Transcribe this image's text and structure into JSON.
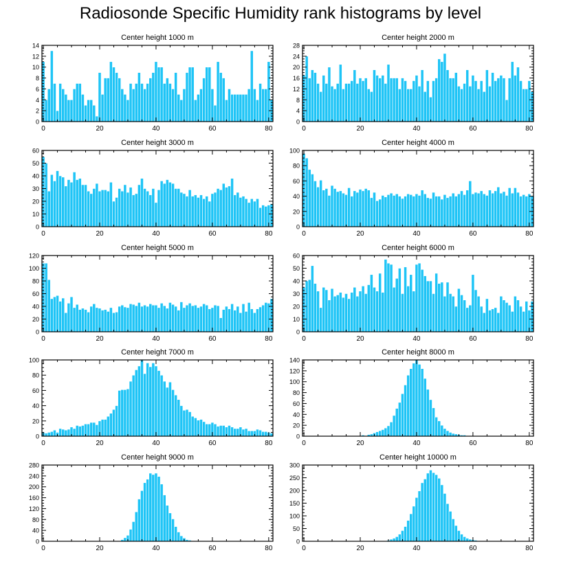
{
  "title": "Radiosonde Specific Humidity rank histograms by level",
  "colors": {
    "bar": "#1ec4f6",
    "bar_edge": "#ffffff",
    "axis": "#000000"
  },
  "chart_data": [
    {
      "type": "bar",
      "subtitle": "Center height 1000 m",
      "xlim": [
        -0.5,
        81.5
      ],
      "xticks": [
        0,
        20,
        40,
        60,
        80
      ],
      "ylim": [
        0,
        14
      ],
      "yticks": [
        0,
        2,
        4,
        6,
        8,
        10,
        12,
        14
      ],
      "values": [
        11,
        4,
        6,
        13,
        7,
        2,
        7,
        6,
        5,
        4,
        4,
        6,
        7,
        7,
        5,
        3,
        4,
        4,
        3,
        1,
        9,
        5,
        8,
        8,
        11,
        10,
        9,
        8,
        6,
        5,
        4,
        7,
        6,
        7,
        9,
        7,
        6,
        7,
        8,
        9,
        11,
        10,
        10,
        7,
        8,
        7,
        6,
        9,
        5,
        4,
        6,
        9,
        10,
        10,
        4,
        5,
        6,
        8,
        10,
        10,
        6,
        3,
        11,
        9,
        8,
        4,
        6,
        5,
        5,
        5,
        5,
        5,
        5,
        6,
        13,
        6,
        4,
        7,
        6,
        6,
        11,
        4
      ]
    },
    {
      "type": "bar",
      "subtitle": "Center height 2000 m",
      "xlim": [
        -0.5,
        81.5
      ],
      "xticks": [
        0,
        20,
        40,
        60,
        80
      ],
      "ylim": [
        0,
        28
      ],
      "yticks": [
        0,
        4,
        8,
        12,
        16,
        20,
        24,
        28
      ],
      "values": [
        17,
        24,
        16,
        19,
        18,
        14,
        11,
        17,
        14,
        20,
        13,
        12,
        14,
        21,
        12,
        14,
        14,
        15,
        19,
        14,
        16,
        15,
        16,
        12,
        11,
        19,
        17,
        16,
        17,
        14,
        21,
        16,
        16,
        16,
        12,
        16,
        15,
        12,
        12,
        15,
        17,
        13,
        19,
        11,
        15,
        9,
        15,
        16,
        23,
        22,
        25,
        19,
        16,
        16,
        18,
        13,
        12,
        14,
        19,
        13,
        17,
        15,
        12,
        15,
        11,
        19,
        13,
        18,
        15,
        16,
        17,
        16,
        8,
        16,
        22,
        17,
        20,
        15,
        12,
        12,
        15,
        11
      ]
    },
    {
      "type": "bar",
      "subtitle": "Center height 3000 m",
      "xlim": [
        -0.5,
        81.5
      ],
      "xticks": [
        0,
        20,
        40,
        60,
        80
      ],
      "ylim": [
        0,
        60
      ],
      "yticks": [
        0,
        10,
        20,
        30,
        40,
        50,
        60
      ],
      "values": [
        55,
        50,
        28,
        41,
        36,
        44,
        40,
        39,
        32,
        37,
        35,
        43,
        37,
        38,
        33,
        33,
        28,
        26,
        30,
        34,
        28,
        29,
        29,
        28,
        35,
        20,
        23,
        30,
        28,
        33,
        27,
        31,
        25,
        26,
        33,
        38,
        30,
        28,
        25,
        30,
        19,
        29,
        36,
        34,
        37,
        35,
        34,
        30,
        30,
        27,
        26,
        24,
        29,
        24,
        25,
        23,
        25,
        22,
        24,
        20,
        26,
        27,
        30,
        29,
        34,
        31,
        32,
        38,
        25,
        27,
        23,
        24,
        22,
        19,
        22,
        20,
        22,
        15,
        17,
        16,
        17,
        18
      ]
    },
    {
      "type": "bar",
      "subtitle": "Center height 4000 m",
      "xlim": [
        -0.5,
        81.5
      ],
      "xticks": [
        0,
        20,
        40,
        60,
        80
      ],
      "ylim": [
        0,
        100
      ],
      "yticks": [
        0,
        20,
        40,
        60,
        80,
        100
      ],
      "values": [
        96,
        90,
        75,
        69,
        60,
        52,
        61,
        48,
        50,
        41,
        54,
        50,
        46,
        47,
        44,
        42,
        51,
        40,
        47,
        45,
        49,
        47,
        50,
        48,
        38,
        45,
        34,
        36,
        41,
        39,
        42,
        44,
        41,
        43,
        40,
        37,
        40,
        43,
        42,
        40,
        43,
        41,
        48,
        43,
        38,
        37,
        45,
        40,
        40,
        36,
        42,
        38,
        40,
        44,
        40,
        43,
        47,
        42,
        48,
        60,
        43,
        45,
        44,
        47,
        43,
        41,
        48,
        44,
        47,
        52,
        44,
        46,
        41,
        51,
        44,
        51,
        45,
        40,
        42,
        40,
        43,
        40
      ]
    },
    {
      "type": "bar",
      "subtitle": "Center height 5000 m",
      "xlim": [
        -0.5,
        81.5
      ],
      "xticks": [
        0,
        20,
        40,
        60,
        80
      ],
      "ylim": [
        0,
        120
      ],
      "yticks": [
        0,
        20,
        40,
        60,
        80,
        100,
        120
      ],
      "values": [
        108,
        108,
        82,
        52,
        55,
        57,
        48,
        53,
        30,
        45,
        55,
        38,
        43,
        35,
        37,
        35,
        31,
        40,
        44,
        38,
        37,
        34,
        35,
        32,
        38,
        30,
        31,
        40,
        42,
        39,
        38,
        44,
        43,
        41,
        46,
        40,
        42,
        40,
        44,
        42,
        42,
        38,
        45,
        41,
        37,
        46,
        43,
        40,
        34,
        47,
        38,
        42,
        45,
        41,
        42,
        38,
        40,
        44,
        42,
        36,
        38,
        42,
        41,
        22,
        35,
        40,
        36,
        44,
        34,
        40,
        30,
        44,
        32,
        46,
        36,
        30,
        36,
        39,
        42,
        46,
        45,
        52
      ]
    },
    {
      "type": "bar",
      "subtitle": "Center height 6000 m",
      "xlim": [
        -0.5,
        81.5
      ],
      "xticks": [
        0,
        20,
        40,
        60,
        80
      ],
      "ylim": [
        0,
        60
      ],
      "yticks": [
        0,
        10,
        20,
        30,
        40,
        50,
        60
      ],
      "values": [
        35,
        40,
        41,
        52,
        38,
        32,
        19,
        35,
        33,
        25,
        34,
        28,
        29,
        31,
        27,
        30,
        26,
        31,
        35,
        28,
        32,
        36,
        30,
        37,
        45,
        35,
        32,
        46,
        31,
        57,
        54,
        53,
        35,
        42,
        50,
        30,
        51,
        36,
        45,
        32,
        53,
        54,
        49,
        44,
        40,
        40,
        30,
        46,
        38,
        39,
        28,
        39,
        30,
        28,
        20,
        34,
        29,
        25,
        19,
        21,
        45,
        33,
        28,
        20,
        15,
        26,
        17,
        18,
        19,
        15,
        28,
        25,
        23,
        21,
        16,
        28,
        25,
        20,
        16,
        24,
        17,
        24
      ]
    },
    {
      "type": "bar",
      "subtitle": "Center height 7000 m",
      "xlim": [
        -0.5,
        81.5
      ],
      "xticks": [
        0,
        20,
        40,
        60,
        80
      ],
      "ylim": [
        0,
        100
      ],
      "yticks": [
        0,
        20,
        40,
        60,
        80,
        100
      ],
      "values": [
        5,
        4,
        5,
        6,
        8,
        5,
        10,
        9,
        8,
        9,
        12,
        10,
        14,
        13,
        14,
        16,
        16,
        18,
        18,
        15,
        20,
        22,
        22,
        26,
        30,
        35,
        40,
        60,
        61,
        61,
        62,
        72,
        80,
        87,
        92,
        100,
        82,
        96,
        91,
        96,
        92,
        86,
        80,
        72,
        64,
        71,
        61,
        54,
        48,
        40,
        34,
        35,
        32,
        26,
        24,
        21,
        22,
        19,
        16,
        16,
        18,
        16,
        13,
        14,
        14,
        12,
        14,
        12,
        10,
        10,
        12,
        9,
        10,
        7,
        7,
        7,
        9,
        8,
        6,
        6,
        5,
        4
      ]
    },
    {
      "type": "bar",
      "subtitle": "Center height 8000 m",
      "xlim": [
        -0.5,
        81.5
      ],
      "xticks": [
        0,
        20,
        40,
        60,
        80
      ],
      "ylim": [
        0,
        140
      ],
      "yticks": [
        0,
        20,
        40,
        60,
        80,
        100,
        120,
        140
      ],
      "values": [
        0,
        0,
        0,
        0,
        0,
        0,
        0,
        0,
        0,
        0,
        0,
        0,
        0,
        0,
        0,
        1,
        0,
        1,
        1,
        0,
        0,
        2,
        1,
        3,
        4,
        6,
        8,
        10,
        12,
        15,
        19,
        26,
        38,
        51,
        62,
        78,
        94,
        112,
        124,
        134,
        140,
        132,
        124,
        106,
        86,
        67,
        52,
        35,
        28,
        20,
        14,
        10,
        7,
        5,
        4,
        3,
        2,
        2,
        1,
        1,
        1,
        1,
        1,
        0,
        0,
        0,
        0,
        0,
        0,
        0,
        0,
        0,
        0,
        0,
        0,
        0,
        0,
        0,
        0,
        0,
        0,
        0
      ]
    },
    {
      "type": "bar",
      "subtitle": "Center height 9000 m",
      "xlim": [
        -0.5,
        81.5
      ],
      "xticks": [
        0,
        20,
        40,
        60,
        80
      ],
      "ylim": [
        0,
        280
      ],
      "yticks": [
        0,
        40,
        80,
        120,
        160,
        200,
        240,
        280
      ],
      "values": [
        0,
        0,
        0,
        0,
        0,
        0,
        0,
        0,
        0,
        0,
        0,
        0,
        0,
        0,
        0,
        0,
        0,
        0,
        0,
        0,
        0,
        0,
        0,
        0,
        0,
        0,
        1,
        2,
        6,
        13,
        22,
        44,
        72,
        108,
        155,
        186,
        215,
        228,
        250,
        245,
        250,
        238,
        210,
        170,
        132,
        104,
        82,
        54,
        34,
        20,
        12,
        6,
        4,
        2,
        1,
        1,
        1,
        0,
        0,
        0,
        0,
        0,
        0,
        0,
        0,
        0,
        0,
        0,
        0,
        0,
        0,
        0,
        0,
        0,
        0,
        0,
        0,
        0,
        0,
        0,
        0,
        0
      ]
    },
    {
      "type": "bar",
      "subtitle": "Center height 10000 m",
      "xlim": [
        -0.5,
        81.5
      ],
      "xticks": [
        0,
        20,
        40,
        60,
        80
      ],
      "ylim": [
        0,
        300
      ],
      "yticks": [
        0,
        50,
        100,
        150,
        200,
        250,
        300
      ],
      "values": [
        0,
        0,
        0,
        0,
        0,
        0,
        0,
        0,
        0,
        0,
        0,
        0,
        0,
        0,
        0,
        0,
        0,
        0,
        0,
        0,
        0,
        0,
        0,
        0,
        0,
        0,
        0,
        0,
        1,
        2,
        4,
        8,
        12,
        18,
        28,
        42,
        58,
        82,
        108,
        138,
        172,
        198,
        230,
        245,
        268,
        280,
        270,
        262,
        248,
        222,
        188,
        148,
        118,
        88,
        62,
        42,
        28,
        18,
        12,
        8,
        6,
        4,
        2,
        1,
        1,
        0,
        0,
        0,
        0,
        0,
        0,
        0,
        0,
        0,
        0,
        0,
        0,
        0,
        0,
        0,
        0,
        0
      ]
    }
  ]
}
